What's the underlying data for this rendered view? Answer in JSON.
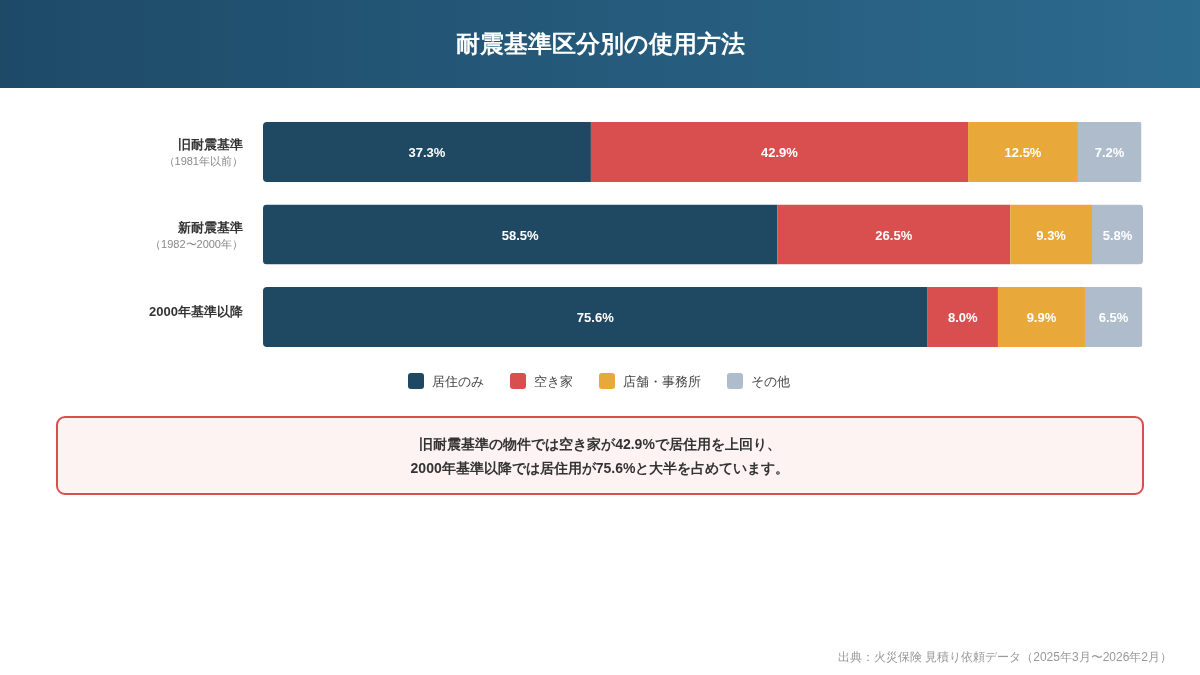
{
  "chart_data": {
    "type": "bar",
    "orientation": "horizontal",
    "stacked": true,
    "title": "耐震基準区分別の使用方法",
    "categories": [
      "旧耐震基準（1981年以前）",
      "新耐震基準（1982〜2000年）",
      "2000年基準以降"
    ],
    "series": [
      {
        "name": "居住のみ",
        "color": "#1f4963",
        "values": [
          37.3,
          58.5,
          75.6
        ],
        "value_labels": [
          "37.3%",
          "58.5%",
          "75.6%"
        ]
      },
      {
        "name": "空き家",
        "color": "#d94f50",
        "values": [
          42.9,
          26.5,
          8.0
        ],
        "value_labels": [
          "42.9%",
          "26.5%",
          "8.0%"
        ]
      },
      {
        "name": "店舗・事務所",
        "color": "#e8a83a",
        "values": [
          12.5,
          9.3,
          9.9
        ],
        "value_labels": [
          "12.5%",
          "9.3%",
          "9.9%"
        ]
      },
      {
        "name": "その他",
        "color": "#aebccc",
        "values": [
          7.2,
          5.8,
          6.5
        ],
        "value_labels": [
          "7.2%",
          "5.8%",
          "6.5%"
        ]
      }
    ],
    "legend": "bottom",
    "annotations": [
      "旧耐震基準の物件では空き家が42.9%で居住用を上回り、",
      "2000年基準以降では居住用が75.6%と大半を占めています。",
      "出典：火災保険 見積り依頼データ（2025年3月〜2026年2月）"
    ]
  }
}
